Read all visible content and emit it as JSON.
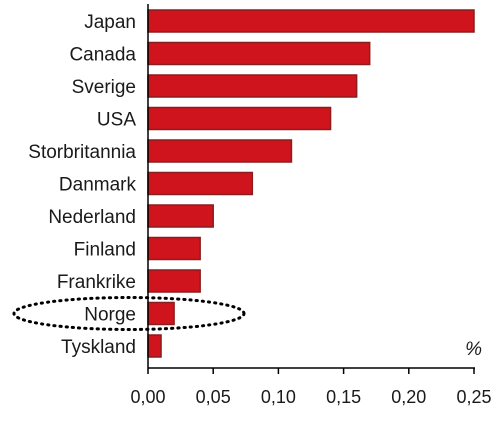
{
  "chart_data": {
    "type": "bar",
    "orientation": "horizontal",
    "title": "",
    "xlabel": "",
    "ylabel": "",
    "unit": "%",
    "categories": [
      "Japan",
      "Canada",
      "Sverige",
      "USA",
      "Storbritannia",
      "Danmark",
      "Nederland",
      "Finland",
      "Frankrike",
      "Norge",
      "Tyskland"
    ],
    "values": [
      0.25,
      0.17,
      0.16,
      0.14,
      0.11,
      0.08,
      0.05,
      0.04,
      0.04,
      0.02,
      0.01
    ],
    "xlim": [
      0,
      0.25
    ],
    "xticks": [
      "0,00",
      "0,05",
      "0,10",
      "0,15",
      "0,20",
      "0,25"
    ],
    "highlighted_category": "Norge",
    "grid": false,
    "legend": "none",
    "colors": {
      "bar": "#d0141d",
      "bar_edge": "#8a1d1d",
      "axis": "#000000",
      "highlight_outline": "#000000"
    }
  }
}
